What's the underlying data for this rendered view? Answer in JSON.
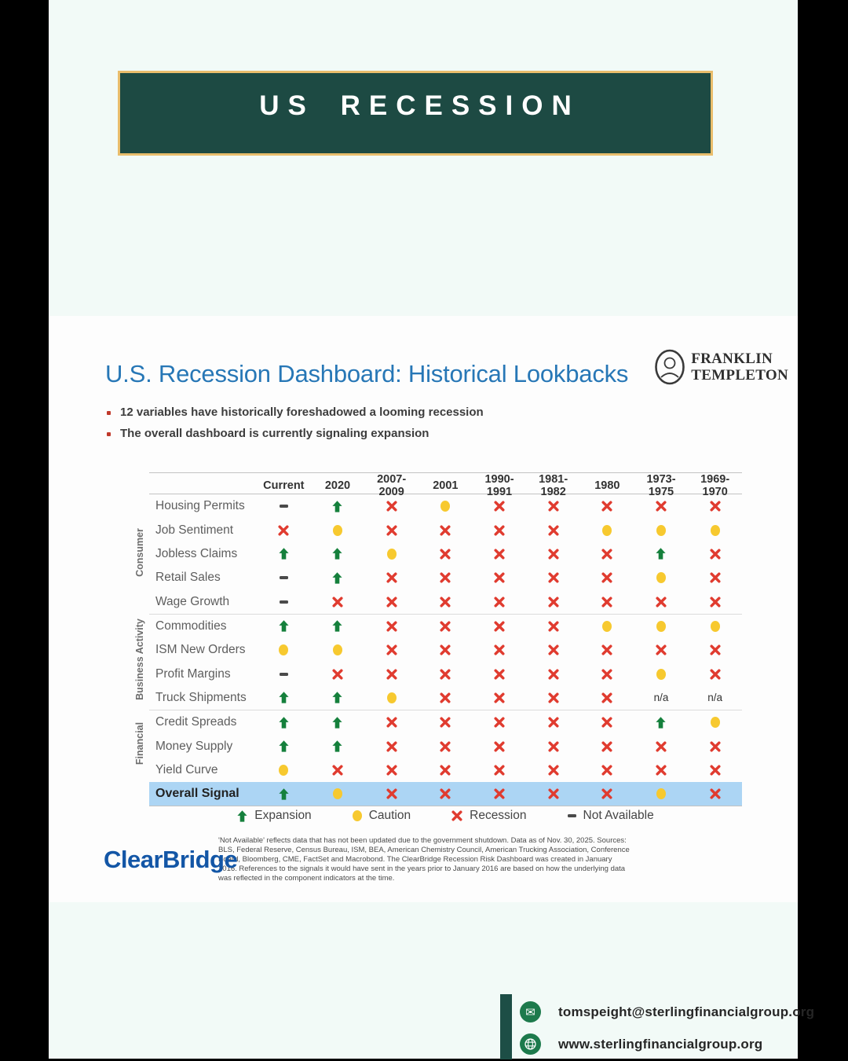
{
  "banner": {
    "title": "US RECESSION"
  },
  "dashboard": {
    "title": "U.S. Recession Dashboard: Historical Lookbacks",
    "bullets": [
      "12 variables have historically foreshadowed a looming recession",
      "The overall dashboard is currently signaling expansion"
    ],
    "brand_top_right": {
      "line1": "FRANKLIN",
      "line2": "TEMPLETON"
    },
    "brand_bottom_left": "ClearBridge",
    "footnote": "'Not Available' reflects data that has not been updated due to the government shutdown. Data as of Nov. 30, 2025. Sources: BLS, Federal Reserve, Census Bureau, ISM, BEA, American Chemistry Council, American Trucking Association, Conference Board, Bloomberg, CME, FactSet and Macrobond. The ClearBridge Recession Risk Dashboard was created in January 2016. References to the signals it would have sent in the years prior to January 2016 are based on how the underlying data was reflected in the component indicators at the time."
  },
  "chart_data": {
    "type": "table",
    "title": "U.S. Recession Dashboard: Historical Lookbacks",
    "columns": [
      "Current",
      "2020",
      "2007-2009",
      "2001",
      "1990-1991",
      "1981-1982",
      "1980",
      "1973-1975",
      "1969-1970"
    ],
    "groups": [
      {
        "name": "Consumer",
        "rows": [
          {
            "label": "Housing Permits",
            "values": [
              "na",
              "expansion",
              "recession",
              "caution",
              "recession",
              "recession",
              "recession",
              "recession",
              "recession"
            ]
          },
          {
            "label": "Job Sentiment",
            "values": [
              "recession",
              "caution",
              "recession",
              "recession",
              "recession",
              "recession",
              "caution",
              "caution",
              "caution"
            ]
          },
          {
            "label": "Jobless Claims",
            "values": [
              "expansion",
              "expansion",
              "caution",
              "recession",
              "recession",
              "recession",
              "recession",
              "expansion",
              "recession"
            ]
          },
          {
            "label": "Retail Sales",
            "values": [
              "na",
              "expansion",
              "recession",
              "recession",
              "recession",
              "recession",
              "recession",
              "caution",
              "recession"
            ]
          },
          {
            "label": "Wage Growth",
            "values": [
              "na",
              "recession",
              "recession",
              "recession",
              "recession",
              "recession",
              "recession",
              "recession",
              "recession"
            ]
          }
        ]
      },
      {
        "name": "Business Activity",
        "rows": [
          {
            "label": "Commodities",
            "values": [
              "expansion",
              "expansion",
              "recession",
              "recession",
              "recession",
              "recession",
              "caution",
              "caution",
              "caution"
            ]
          },
          {
            "label": "ISM New Orders",
            "values": [
              "caution",
              "caution",
              "recession",
              "recession",
              "recession",
              "recession",
              "recession",
              "recession",
              "recession"
            ]
          },
          {
            "label": "Profit Margins",
            "values": [
              "na",
              "recession",
              "recession",
              "recession",
              "recession",
              "recession",
              "recession",
              "caution",
              "recession"
            ]
          },
          {
            "label": "Truck Shipments",
            "values": [
              "expansion",
              "expansion",
              "caution",
              "recession",
              "recession",
              "recession",
              "recession",
              "n/a",
              "n/a"
            ]
          }
        ]
      },
      {
        "name": "Financial",
        "rows": [
          {
            "label": "Credit Spreads",
            "values": [
              "expansion",
              "expansion",
              "recession",
              "recession",
              "recession",
              "recession",
              "recession",
              "expansion",
              "caution"
            ]
          },
          {
            "label": "Money Supply",
            "values": [
              "expansion",
              "expansion",
              "recession",
              "recession",
              "recession",
              "recession",
              "recession",
              "recession",
              "recession"
            ]
          },
          {
            "label": "Yield Curve",
            "values": [
              "caution",
              "recession",
              "recession",
              "recession",
              "recession",
              "recession",
              "recession",
              "recession",
              "recession"
            ]
          }
        ]
      }
    ],
    "overall": {
      "label": "Overall Signal",
      "values": [
        "expansion",
        "caution",
        "recession",
        "recession",
        "recession",
        "recession",
        "recession",
        "caution",
        "recession"
      ]
    },
    "legend": [
      {
        "icon": "expansion",
        "label": "Expansion"
      },
      {
        "icon": "caution",
        "label": "Caution"
      },
      {
        "icon": "recession",
        "label": "Recession"
      },
      {
        "icon": "na",
        "label": "Not Available"
      }
    ]
  },
  "footer": {
    "email": "tomspeight@sterlingfinancialgroup.org",
    "website": "www.sterlingfinancialgroup.org"
  },
  "colors": {
    "expansion_green": "#15803c",
    "caution_yellow": "#f7c92f",
    "recession_red": "#e03b2f",
    "not_available_gray": "#4a4a4a",
    "overall_row_bg": "#acd5f4",
    "banner_bg": "#1d4a43",
    "banner_border": "#e9bd6c",
    "title_blue": "#2777b6",
    "clearbridge_blue": "#1356a6",
    "footer_icon_green": "#1d7a4c",
    "footer_bar_teal": "#1d4e46",
    "page_bg_mint": "#f2faf7",
    "frame_black": "#000000"
  }
}
